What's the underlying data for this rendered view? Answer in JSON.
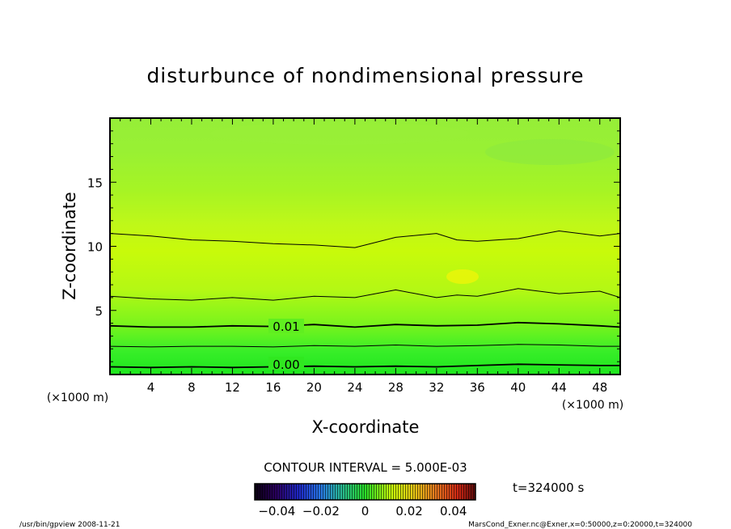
{
  "chart_data": {
    "type": "contour",
    "title": "disturbunce of nondimensional pressure",
    "xlabel": "X-coordinate",
    "ylabel": "Z-coordinate",
    "x_unit": "(×1000 m)",
    "y_unit": "(×1000 m)",
    "xlim": [
      0,
      50
    ],
    "ylim": [
      0,
      20
    ],
    "x_ticks": [
      4,
      8,
      12,
      16,
      20,
      24,
      28,
      32,
      36,
      40,
      44,
      48
    ],
    "y_ticks": [
      5,
      10,
      15
    ],
    "contour_interval_text": "CONTOUR INTERVAL = 5.000E-03",
    "contour_labels": [
      "0.01",
      "0.00"
    ],
    "contours": [
      {
        "level": 0.0,
        "label": "0.00",
        "x": [
          0,
          4,
          8,
          12,
          16,
          20,
          24,
          28,
          32,
          36,
          40,
          44,
          48,
          50
        ],
        "z": [
          0.6,
          0.55,
          0.6,
          0.55,
          0.6,
          0.65,
          0.6,
          0.65,
          0.6,
          0.7,
          0.8,
          0.75,
          0.7,
          0.7
        ]
      },
      {
        "level": 0.005,
        "x": [
          0,
          4,
          8,
          12,
          16,
          20,
          24,
          28,
          32,
          36,
          40,
          44,
          48,
          50
        ],
        "z": [
          2.2,
          2.15,
          2.2,
          2.2,
          2.15,
          2.25,
          2.2,
          2.3,
          2.2,
          2.25,
          2.35,
          2.3,
          2.2,
          2.2
        ]
      },
      {
        "level": 0.01,
        "label": "0.01",
        "x": [
          0,
          4,
          8,
          12,
          16,
          20,
          24,
          28,
          32,
          36,
          40,
          44,
          48,
          50
        ],
        "z": [
          3.8,
          3.7,
          3.7,
          3.8,
          3.75,
          3.9,
          3.7,
          3.9,
          3.8,
          3.85,
          4.05,
          3.95,
          3.8,
          3.7
        ]
      },
      {
        "level": 0.015,
        "x": [
          0,
          4,
          8,
          12,
          16,
          20,
          24,
          28,
          32,
          34,
          36,
          40,
          44,
          48,
          50
        ],
        "z": [
          6.1,
          5.9,
          5.8,
          6.0,
          5.8,
          6.1,
          6.0,
          6.6,
          6.0,
          6.2,
          6.1,
          6.7,
          6.3,
          6.5,
          6.0
        ]
      },
      {
        "level": 0.015,
        "x": [
          0,
          4,
          8,
          12,
          16,
          20,
          24,
          28,
          32,
          34,
          36,
          40,
          44,
          48,
          50
        ],
        "z": [
          11.0,
          10.8,
          10.5,
          10.4,
          10.2,
          10.1,
          9.9,
          10.7,
          11.0,
          10.5,
          10.4,
          10.6,
          11.2,
          10.8,
          11.0
        ]
      }
    ],
    "colorbar": {
      "ticks": [
        "−0.04",
        "−0.02",
        "0",
        "0.02",
        "0.04"
      ],
      "min": -0.05,
      "max": 0.05
    },
    "time_label": "t=324000 s"
  },
  "footer": {
    "left": "/usr/bin/gpview   2008-11-21",
    "right": "MarsCond_Exner.nc@Exner,x=0:50000,z=0:20000,t=324000"
  }
}
